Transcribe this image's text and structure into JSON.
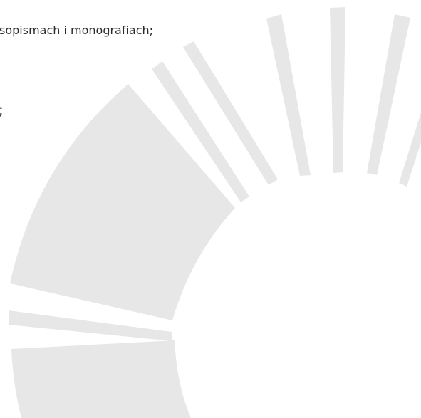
{
  "lines": [
    "sopismach i monografiach;",
    ";"
  ]
}
